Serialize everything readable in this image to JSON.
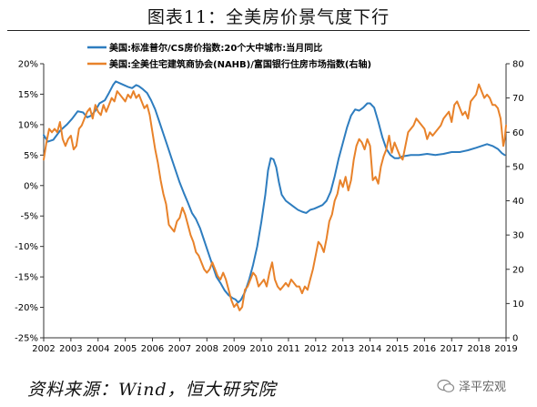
{
  "title": "图表11：全美房价景气度下行",
  "source": "资料来源：Wind，恒大研究院",
  "watermark": "泽平宏观",
  "colors": {
    "series1": "#2E7DBF",
    "series2": "#E8822A",
    "axis": "#333333",
    "text": "#000000"
  },
  "chart_data": {
    "type": "line",
    "xlim": [
      2002,
      2019
    ],
    "x_ticks": [
      "2002",
      "2003",
      "2004",
      "2005",
      "2006",
      "2007",
      "2008",
      "2009",
      "2010",
      "2011",
      "2012",
      "2013",
      "2014",
      "2015",
      "2016",
      "2017",
      "2018",
      "2019"
    ],
    "y_left": {
      "min": -25,
      "max": 20,
      "ticks": [
        "-25%",
        "-20%",
        "-15%",
        "-10%",
        "-5%",
        "0%",
        "5%",
        "10%",
        "15%",
        "20%"
      ]
    },
    "y_right": {
      "min": 0,
      "max": 80,
      "ticks": [
        "0",
        "10",
        "20",
        "30",
        "40",
        "50",
        "60",
        "70",
        "80"
      ]
    },
    "legend_position": "top-left",
    "series": [
      {
        "name": "美国:标准普尔/CS房价指数:20个大中城市:当月同比",
        "axis": "left",
        "points": [
          [
            2002.0,
            8.3
          ],
          [
            2002.15,
            7.2
          ],
          [
            2002.35,
            7.5
          ],
          [
            2002.6,
            9.0
          ],
          [
            2002.85,
            10.0
          ],
          [
            2003.05,
            11.0
          ],
          [
            2003.25,
            12.2
          ],
          [
            2003.45,
            12.0
          ],
          [
            2003.6,
            11.2
          ],
          [
            2003.75,
            11.5
          ],
          [
            2003.9,
            12.3
          ],
          [
            2004.05,
            13.5
          ],
          [
            2004.25,
            14.0
          ],
          [
            2004.4,
            15.2
          ],
          [
            2004.55,
            16.5
          ],
          [
            2004.65,
            17.1
          ],
          [
            2004.8,
            16.8
          ],
          [
            2004.95,
            16.5
          ],
          [
            2005.1,
            16.2
          ],
          [
            2005.25,
            16.0
          ],
          [
            2005.4,
            16.5
          ],
          [
            2005.5,
            16.3
          ],
          [
            2005.65,
            15.8
          ],
          [
            2005.8,
            15.2
          ],
          [
            2005.95,
            14.0
          ],
          [
            2006.1,
            12.5
          ],
          [
            2006.25,
            10.5
          ],
          [
            2006.4,
            8.5
          ],
          [
            2006.55,
            6.5
          ],
          [
            2006.7,
            4.5
          ],
          [
            2006.85,
            2.5
          ],
          [
            2007.0,
            0.5
          ],
          [
            2007.15,
            -1.2
          ],
          [
            2007.3,
            -2.8
          ],
          [
            2007.45,
            -4.5
          ],
          [
            2007.6,
            -5.5
          ],
          [
            2007.75,
            -7.0
          ],
          [
            2007.9,
            -9.0
          ],
          [
            2008.05,
            -11.0
          ],
          [
            2008.2,
            -13.0
          ],
          [
            2008.35,
            -15.0
          ],
          [
            2008.5,
            -16.0
          ],
          [
            2008.65,
            -17.2
          ],
          [
            2008.8,
            -18.0
          ],
          [
            2008.95,
            -18.5
          ],
          [
            2009.05,
            -18.7
          ],
          [
            2009.15,
            -19.2
          ],
          [
            2009.25,
            -18.8
          ],
          [
            2009.4,
            -17.5
          ],
          [
            2009.55,
            -15.5
          ],
          [
            2009.7,
            -13.0
          ],
          [
            2009.85,
            -10.0
          ],
          [
            2010.0,
            -6.0
          ],
          [
            2010.15,
            -1.5
          ],
          [
            2010.25,
            2.5
          ],
          [
            2010.35,
            4.5
          ],
          [
            2010.45,
            4.3
          ],
          [
            2010.55,
            3.0
          ],
          [
            2010.65,
            0.5
          ],
          [
            2010.75,
            -1.5
          ],
          [
            2010.9,
            -2.5
          ],
          [
            2011.05,
            -3.0
          ],
          [
            2011.2,
            -3.5
          ],
          [
            2011.35,
            -4.0
          ],
          [
            2011.5,
            -4.3
          ],
          [
            2011.65,
            -4.5
          ],
          [
            2011.8,
            -4.0
          ],
          [
            2011.95,
            -3.8
          ],
          [
            2012.1,
            -3.5
          ],
          [
            2012.25,
            -3.2
          ],
          [
            2012.4,
            -2.5
          ],
          [
            2012.55,
            -1.0
          ],
          [
            2012.7,
            1.5
          ],
          [
            2012.85,
            4.5
          ],
          [
            2013.0,
            7.0
          ],
          [
            2013.15,
            9.5
          ],
          [
            2013.3,
            11.5
          ],
          [
            2013.45,
            12.5
          ],
          [
            2013.6,
            12.3
          ],
          [
            2013.75,
            12.8
          ],
          [
            2013.9,
            13.5
          ],
          [
            2014.0,
            13.5
          ],
          [
            2014.15,
            12.8
          ],
          [
            2014.3,
            10.5
          ],
          [
            2014.45,
            8.0
          ],
          [
            2014.6,
            6.0
          ],
          [
            2014.75,
            5.0
          ],
          [
            2014.9,
            4.5
          ],
          [
            2015.05,
            4.5
          ],
          [
            2015.2,
            4.8
          ],
          [
            2015.5,
            5.0
          ],
          [
            2015.8,
            5.0
          ],
          [
            2016.1,
            5.2
          ],
          [
            2016.4,
            5.0
          ],
          [
            2016.7,
            5.2
          ],
          [
            2017.0,
            5.5
          ],
          [
            2017.3,
            5.5
          ],
          [
            2017.6,
            5.8
          ],
          [
            2017.9,
            6.2
          ],
          [
            2018.1,
            6.5
          ],
          [
            2018.3,
            6.8
          ],
          [
            2018.5,
            6.5
          ],
          [
            2018.7,
            6.0
          ],
          [
            2018.85,
            5.3
          ],
          [
            2018.95,
            5.0
          ]
        ]
      },
      {
        "name": "美国:全美住宅建筑商协会(NAHB)/富国银行住房市场指数(右轴)",
        "axis": "right",
        "points": [
          [
            2002.0,
            52
          ],
          [
            2002.1,
            57
          ],
          [
            2002.2,
            61
          ],
          [
            2002.3,
            60
          ],
          [
            2002.4,
            61
          ],
          [
            2002.5,
            60
          ],
          [
            2002.6,
            63
          ],
          [
            2002.7,
            58
          ],
          [
            2002.8,
            56
          ],
          [
            2002.9,
            58
          ],
          [
            2003.0,
            59
          ],
          [
            2003.1,
            55
          ],
          [
            2003.2,
            56
          ],
          [
            2003.3,
            61
          ],
          [
            2003.4,
            62
          ],
          [
            2003.5,
            64
          ],
          [
            2003.6,
            66
          ],
          [
            2003.7,
            67
          ],
          [
            2003.8,
            64
          ],
          [
            2003.9,
            68
          ],
          [
            2004.0,
            66
          ],
          [
            2004.1,
            65
          ],
          [
            2004.2,
            68
          ],
          [
            2004.3,
            66
          ],
          [
            2004.4,
            68
          ],
          [
            2004.5,
            70
          ],
          [
            2004.6,
            69
          ],
          [
            2004.7,
            72
          ],
          [
            2004.8,
            71
          ],
          [
            2004.9,
            70
          ],
          [
            2005.0,
            69
          ],
          [
            2005.1,
            71
          ],
          [
            2005.2,
            70
          ],
          [
            2005.3,
            72
          ],
          [
            2005.4,
            70
          ],
          [
            2005.5,
            71
          ],
          [
            2005.6,
            69
          ],
          [
            2005.7,
            67
          ],
          [
            2005.8,
            68
          ],
          [
            2005.9,
            65
          ],
          [
            2006.0,
            60
          ],
          [
            2006.1,
            55
          ],
          [
            2006.2,
            51
          ],
          [
            2006.3,
            46
          ],
          [
            2006.4,
            42
          ],
          [
            2006.5,
            39
          ],
          [
            2006.6,
            33
          ],
          [
            2006.7,
            32
          ],
          [
            2006.8,
            31
          ],
          [
            2006.9,
            34
          ],
          [
            2007.0,
            35
          ],
          [
            2007.1,
            38
          ],
          [
            2007.2,
            36
          ],
          [
            2007.3,
            33
          ],
          [
            2007.4,
            30
          ],
          [
            2007.5,
            28
          ],
          [
            2007.6,
            25
          ],
          [
            2007.7,
            24
          ],
          [
            2007.8,
            22
          ],
          [
            2007.9,
            20
          ],
          [
            2008.0,
            19
          ],
          [
            2008.1,
            20
          ],
          [
            2008.2,
            22
          ],
          [
            2008.3,
            20
          ],
          [
            2008.4,
            18
          ],
          [
            2008.5,
            17
          ],
          [
            2008.6,
            19
          ],
          [
            2008.7,
            17
          ],
          [
            2008.8,
            14
          ],
          [
            2008.9,
            11
          ],
          [
            2009.0,
            9
          ],
          [
            2009.1,
            10
          ],
          [
            2009.2,
            8
          ],
          [
            2009.3,
            9
          ],
          [
            2009.4,
            14
          ],
          [
            2009.5,
            15
          ],
          [
            2009.6,
            17
          ],
          [
            2009.7,
            19
          ],
          [
            2009.8,
            18
          ],
          [
            2009.9,
            15
          ],
          [
            2010.0,
            16
          ],
          [
            2010.1,
            17
          ],
          [
            2010.2,
            15
          ],
          [
            2010.3,
            19
          ],
          [
            2010.4,
            22
          ],
          [
            2010.5,
            17
          ],
          [
            2010.6,
            15
          ],
          [
            2010.7,
            14
          ],
          [
            2010.8,
            15
          ],
          [
            2010.9,
            16
          ],
          [
            2011.0,
            15
          ],
          [
            2011.1,
            17
          ],
          [
            2011.2,
            16
          ],
          [
            2011.3,
            15
          ],
          [
            2011.4,
            15
          ],
          [
            2011.5,
            13
          ],
          [
            2011.6,
            15
          ],
          [
            2011.7,
            14
          ],
          [
            2011.8,
            17
          ],
          [
            2011.9,
            20
          ],
          [
            2012.0,
            24
          ],
          [
            2012.1,
            28
          ],
          [
            2012.2,
            27
          ],
          [
            2012.3,
            25
          ],
          [
            2012.4,
            29
          ],
          [
            2012.5,
            34
          ],
          [
            2012.6,
            36
          ],
          [
            2012.7,
            40
          ],
          [
            2012.8,
            42
          ],
          [
            2012.9,
            46
          ],
          [
            2013.0,
            44
          ],
          [
            2013.1,
            47
          ],
          [
            2013.2,
            43
          ],
          [
            2013.3,
            46
          ],
          [
            2013.4,
            52
          ],
          [
            2013.5,
            56
          ],
          [
            2013.6,
            58
          ],
          [
            2013.7,
            57
          ],
          [
            2013.8,
            55
          ],
          [
            2013.9,
            58
          ],
          [
            2014.0,
            56
          ],
          [
            2014.1,
            46
          ],
          [
            2014.2,
            47
          ],
          [
            2014.3,
            45
          ],
          [
            2014.4,
            50
          ],
          [
            2014.5,
            53
          ],
          [
            2014.6,
            55
          ],
          [
            2014.7,
            59
          ],
          [
            2014.8,
            54
          ],
          [
            2014.9,
            57
          ],
          [
            2015.0,
            55
          ],
          [
            2015.1,
            53
          ],
          [
            2015.2,
            52
          ],
          [
            2015.3,
            56
          ],
          [
            2015.4,
            60
          ],
          [
            2015.5,
            61
          ],
          [
            2015.6,
            62
          ],
          [
            2015.7,
            64
          ],
          [
            2015.8,
            63
          ],
          [
            2015.9,
            62
          ],
          [
            2016.0,
            61
          ],
          [
            2016.1,
            58
          ],
          [
            2016.2,
            60
          ],
          [
            2016.3,
            59
          ],
          [
            2016.4,
            60
          ],
          [
            2016.5,
            61
          ],
          [
            2016.6,
            62
          ],
          [
            2016.7,
            64
          ],
          [
            2016.8,
            65
          ],
          [
            2016.9,
            66
          ],
          [
            2017.0,
            63
          ],
          [
            2017.1,
            68
          ],
          [
            2017.2,
            69
          ],
          [
            2017.3,
            67
          ],
          [
            2017.4,
            65
          ],
          [
            2017.5,
            66
          ],
          [
            2017.6,
            64
          ],
          [
            2017.7,
            69
          ],
          [
            2017.8,
            70
          ],
          [
            2017.9,
            71
          ],
          [
            2018.0,
            74
          ],
          [
            2018.1,
            72
          ],
          [
            2018.2,
            70
          ],
          [
            2018.3,
            71
          ],
          [
            2018.4,
            70
          ],
          [
            2018.5,
            68
          ],
          [
            2018.6,
            68
          ],
          [
            2018.7,
            67
          ],
          [
            2018.8,
            64
          ],
          [
            2018.85,
            60
          ],
          [
            2018.9,
            56
          ],
          [
            2018.95,
            58
          ],
          [
            2019.0,
            62
          ]
        ]
      }
    ]
  }
}
